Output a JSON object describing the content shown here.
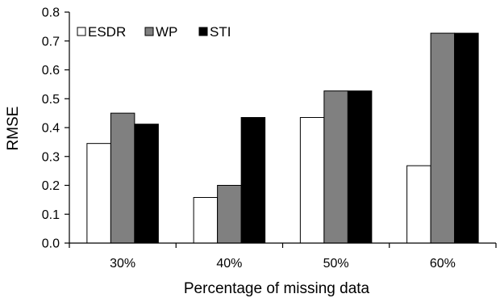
{
  "chart_data": {
    "type": "bar",
    "categories": [
      "30%",
      "40%",
      "50%",
      "60%"
    ],
    "series": [
      {
        "name": "ESDR",
        "color": "#ffffff",
        "values": [
          0.345,
          0.158,
          0.435,
          0.268
        ]
      },
      {
        "name": "WP",
        "color": "#808080",
        "values": [
          0.45,
          0.2,
          0.527,
          0.727
        ]
      },
      {
        "name": "STI",
        "color": "#000000",
        "values": [
          0.412,
          0.435,
          0.527,
          0.727
        ]
      }
    ],
    "xlabel": "Percentage of missing data",
    "ylabel": "RMSE",
    "ylim": [
      0,
      0.8
    ],
    "yticks": [
      "0.0",
      "0.1",
      "0.2",
      "0.3",
      "0.4",
      "0.5",
      "0.6",
      "0.7",
      "0.8"
    ],
    "grid": false,
    "legend_position": "top-left"
  }
}
